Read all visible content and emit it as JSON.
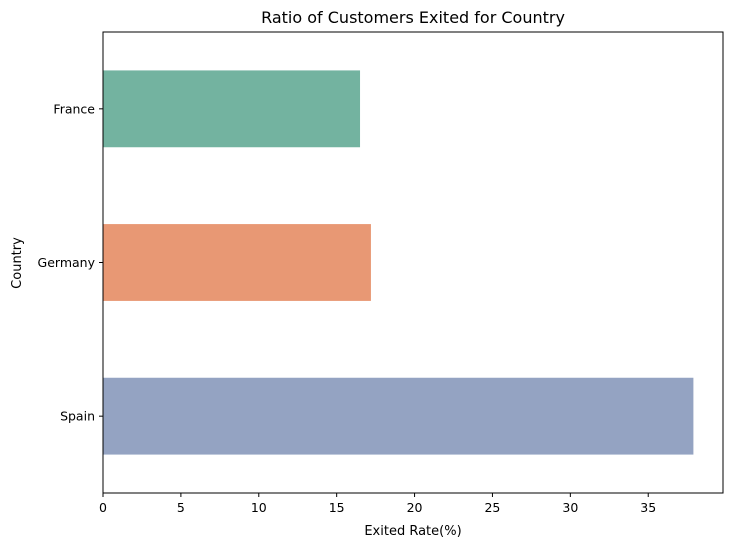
{
  "chart_data": {
    "type": "bar",
    "orientation": "horizontal",
    "title": "Ratio of Customers Exited for Country",
    "xlabel": "Exited Rate(%)",
    "ylabel": "Country",
    "categories": [
      "France",
      "Germany",
      "Spain"
    ],
    "values": [
      16.5,
      17.2,
      37.9
    ],
    "colors": [
      "#73b3a0",
      "#e89874",
      "#94a3c2"
    ],
    "xlim": [
      0,
      39.8
    ],
    "xticks": [
      "0",
      "5",
      "10",
      "15",
      "20",
      "25",
      "30",
      "35"
    ],
    "grid": false,
    "legend": "none"
  }
}
